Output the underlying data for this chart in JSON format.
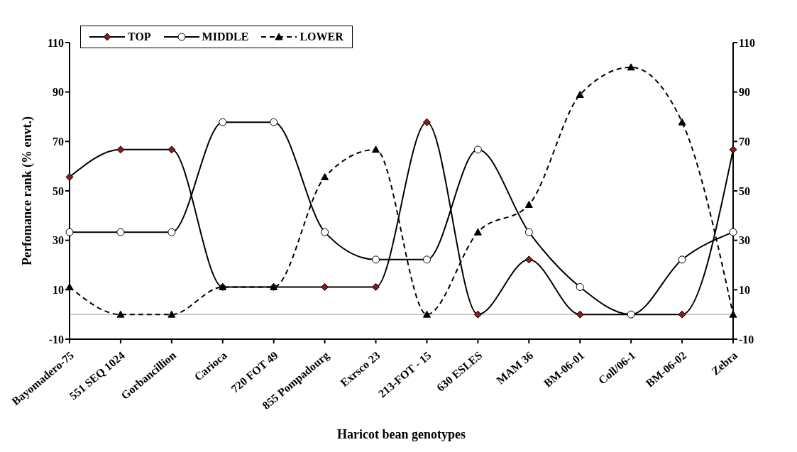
{
  "chart_data": {
    "type": "line",
    "xlabel": "Haricot bean genotypes",
    "ylabel": "Perfomance rank (% envt.)",
    "categories": [
      "Bayomadero-75",
      "551 SEQ 1024",
      "Gorbancillion",
      "Carioca",
      "720 FOT 49",
      "855 Pompadourg",
      "Exrsco 23",
      "213-FOT - 15",
      "630 ESLES",
      "MAM 36",
      "BM-06-01",
      "Coll/06-1",
      "BM-06-02",
      "Zebra"
    ],
    "series": [
      {
        "name": "TOP",
        "color": "#000000",
        "marker": "diamond",
        "line_style": "solid",
        "values": [
          55.6,
          66.7,
          66.7,
          11.1,
          11.1,
          11.1,
          11.1,
          77.8,
          0,
          22.2,
          0,
          0,
          0,
          66.7
        ]
      },
      {
        "name": "MIDDLE",
        "color": "#000000",
        "marker": "circle",
        "line_style": "solid",
        "values": [
          33.3,
          33.3,
          33.3,
          77.8,
          77.8,
          33.3,
          22.2,
          22.2,
          66.7,
          33.3,
          11.1,
          0,
          22.2,
          33.3
        ]
      },
      {
        "name": "LOWER",
        "color": "#000000",
        "marker": "triangle",
        "line_style": "dashed",
        "values": [
          11.1,
          0,
          0,
          11.1,
          11.1,
          55.6,
          66.7,
          0,
          33.3,
          44.4,
          88.9,
          100,
          77.8,
          0
        ]
      }
    ],
    "ylim": [
      -10,
      110
    ],
    "yticks": [
      -10,
      10,
      30,
      50,
      70,
      90,
      110
    ],
    "y2lim": [
      -10,
      110
    ],
    "y2ticks": [
      -10,
      10,
      30,
      50,
      70,
      90,
      110
    ],
    "ref_lines": [
      {
        "axis": "y",
        "value": 0,
        "color": "#a0a0a0"
      }
    ],
    "grid": false,
    "legend": "top left"
  }
}
